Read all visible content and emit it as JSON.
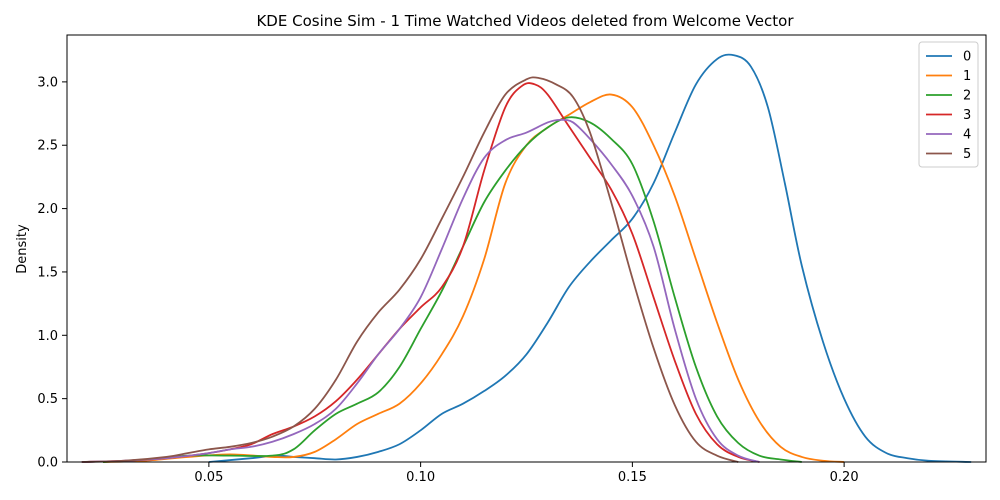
{
  "chart_data": {
    "type": "line",
    "title": "KDE Cosine Sim - 1 Time Watched Videos deleted from Welcome Vector",
    "xlabel": "",
    "ylabel": "Density",
    "xlim": [
      0.0165,
      0.2335
    ],
    "ylim": [
      0,
      3.37
    ],
    "xticks": [
      0.05,
      0.1,
      0.15,
      0.2
    ],
    "xtick_labels": [
      "0.05",
      "0.10",
      "0.15",
      "0.20"
    ],
    "yticks": [
      0.0,
      0.5,
      1.0,
      1.5,
      2.0,
      2.5,
      3.0
    ],
    "ytick_labels": [
      "0.0",
      "0.5",
      "1.0",
      "1.5",
      "2.0",
      "2.5",
      "3.0"
    ],
    "grid": false,
    "legend_position": "top-right",
    "series": [
      {
        "name": "0",
        "color": "#1f77b4",
        "points": [
          [
            0.05,
            0
          ],
          [
            0.06,
            0.03
          ],
          [
            0.066,
            0.05
          ],
          [
            0.07,
            0.04
          ],
          [
            0.075,
            0.03
          ],
          [
            0.08,
            0.02
          ],
          [
            0.085,
            0.04
          ],
          [
            0.09,
            0.08
          ],
          [
            0.095,
            0.14
          ],
          [
            0.1,
            0.25
          ],
          [
            0.105,
            0.38
          ],
          [
            0.11,
            0.46
          ],
          [
            0.115,
            0.56
          ],
          [
            0.12,
            0.68
          ],
          [
            0.125,
            0.85
          ],
          [
            0.13,
            1.1
          ],
          [
            0.135,
            1.38
          ],
          [
            0.14,
            1.58
          ],
          [
            0.145,
            1.75
          ],
          [
            0.15,
            1.92
          ],
          [
            0.155,
            2.2
          ],
          [
            0.16,
            2.6
          ],
          [
            0.165,
            2.98
          ],
          [
            0.17,
            3.18
          ],
          [
            0.174,
            3.21
          ],
          [
            0.178,
            3.12
          ],
          [
            0.182,
            2.8
          ],
          [
            0.186,
            2.2
          ],
          [
            0.19,
            1.55
          ],
          [
            0.195,
            0.95
          ],
          [
            0.2,
            0.5
          ],
          [
            0.205,
            0.2
          ],
          [
            0.21,
            0.07
          ],
          [
            0.215,
            0.03
          ],
          [
            0.22,
            0.01
          ],
          [
            0.23,
            0
          ]
        ]
      },
      {
        "name": "1",
        "color": "#ff7f0e",
        "points": [
          [
            0.025,
            0
          ],
          [
            0.035,
            0.01
          ],
          [
            0.045,
            0.04
          ],
          [
            0.055,
            0.06
          ],
          [
            0.065,
            0.04
          ],
          [
            0.07,
            0.04
          ],
          [
            0.075,
            0.08
          ],
          [
            0.08,
            0.18
          ],
          [
            0.085,
            0.3
          ],
          [
            0.09,
            0.38
          ],
          [
            0.095,
            0.46
          ],
          [
            0.1,
            0.62
          ],
          [
            0.105,
            0.85
          ],
          [
            0.11,
            1.15
          ],
          [
            0.115,
            1.6
          ],
          [
            0.12,
            2.2
          ],
          [
            0.125,
            2.5
          ],
          [
            0.13,
            2.64
          ],
          [
            0.135,
            2.74
          ],
          [
            0.14,
            2.84
          ],
          [
            0.145,
            2.9
          ],
          [
            0.15,
            2.8
          ],
          [
            0.155,
            2.5
          ],
          [
            0.16,
            2.1
          ],
          [
            0.165,
            1.6
          ],
          [
            0.17,
            1.1
          ],
          [
            0.175,
            0.65
          ],
          [
            0.18,
            0.32
          ],
          [
            0.185,
            0.12
          ],
          [
            0.19,
            0.04
          ],
          [
            0.195,
            0.01
          ],
          [
            0.2,
            0
          ]
        ]
      },
      {
        "name": "2",
        "color": "#2ca02c",
        "points": [
          [
            0.025,
            0
          ],
          [
            0.035,
            0.02
          ],
          [
            0.045,
            0.05
          ],
          [
            0.055,
            0.05
          ],
          [
            0.065,
            0.05
          ],
          [
            0.07,
            0.1
          ],
          [
            0.075,
            0.25
          ],
          [
            0.08,
            0.38
          ],
          [
            0.085,
            0.46
          ],
          [
            0.09,
            0.55
          ],
          [
            0.095,
            0.75
          ],
          [
            0.1,
            1.05
          ],
          [
            0.105,
            1.35
          ],
          [
            0.11,
            1.7
          ],
          [
            0.115,
            2.05
          ],
          [
            0.12,
            2.3
          ],
          [
            0.125,
            2.5
          ],
          [
            0.13,
            2.64
          ],
          [
            0.135,
            2.72
          ],
          [
            0.14,
            2.68
          ],
          [
            0.145,
            2.55
          ],
          [
            0.15,
            2.35
          ],
          [
            0.155,
            1.9
          ],
          [
            0.16,
            1.3
          ],
          [
            0.165,
            0.75
          ],
          [
            0.17,
            0.36
          ],
          [
            0.175,
            0.15
          ],
          [
            0.18,
            0.05
          ],
          [
            0.185,
            0.02
          ],
          [
            0.19,
            0
          ]
        ]
      },
      {
        "name": "3",
        "color": "#d62728",
        "points": [
          [
            0.02,
            0
          ],
          [
            0.03,
            0.01
          ],
          [
            0.04,
            0.03
          ],
          [
            0.05,
            0.07
          ],
          [
            0.055,
            0.1
          ],
          [
            0.06,
            0.14
          ],
          [
            0.065,
            0.22
          ],
          [
            0.07,
            0.28
          ],
          [
            0.075,
            0.36
          ],
          [
            0.08,
            0.48
          ],
          [
            0.085,
            0.65
          ],
          [
            0.09,
            0.85
          ],
          [
            0.095,
            1.05
          ],
          [
            0.1,
            1.22
          ],
          [
            0.105,
            1.38
          ],
          [
            0.11,
            1.7
          ],
          [
            0.115,
            2.3
          ],
          [
            0.12,
            2.8
          ],
          [
            0.124,
            2.97
          ],
          [
            0.127,
            2.98
          ],
          [
            0.13,
            2.9
          ],
          [
            0.135,
            2.65
          ],
          [
            0.14,
            2.4
          ],
          [
            0.145,
            2.15
          ],
          [
            0.15,
            1.8
          ],
          [
            0.155,
            1.3
          ],
          [
            0.16,
            0.8
          ],
          [
            0.165,
            0.38
          ],
          [
            0.17,
            0.14
          ],
          [
            0.175,
            0.04
          ],
          [
            0.18,
            0
          ]
        ]
      },
      {
        "name": "4",
        "color": "#9467bd",
        "points": [
          [
            0.02,
            0
          ],
          [
            0.03,
            0.01
          ],
          [
            0.04,
            0.03
          ],
          [
            0.05,
            0.07
          ],
          [
            0.055,
            0.1
          ],
          [
            0.06,
            0.12
          ],
          [
            0.065,
            0.16
          ],
          [
            0.07,
            0.22
          ],
          [
            0.075,
            0.3
          ],
          [
            0.08,
            0.42
          ],
          [
            0.085,
            0.62
          ],
          [
            0.09,
            0.85
          ],
          [
            0.095,
            1.05
          ],
          [
            0.1,
            1.3
          ],
          [
            0.105,
            1.68
          ],
          [
            0.11,
            2.08
          ],
          [
            0.115,
            2.4
          ],
          [
            0.12,
            2.54
          ],
          [
            0.125,
            2.6
          ],
          [
            0.13,
            2.68
          ],
          [
            0.133,
            2.7
          ],
          [
            0.136,
            2.68
          ],
          [
            0.14,
            2.55
          ],
          [
            0.145,
            2.35
          ],
          [
            0.15,
            2.1
          ],
          [
            0.155,
            1.7
          ],
          [
            0.16,
            1.05
          ],
          [
            0.165,
            0.5
          ],
          [
            0.17,
            0.18
          ],
          [
            0.175,
            0.05
          ],
          [
            0.18,
            0
          ]
        ]
      },
      {
        "name": "5",
        "color": "#8c564b",
        "points": [
          [
            0.02,
            0
          ],
          [
            0.03,
            0.01
          ],
          [
            0.04,
            0.04
          ],
          [
            0.045,
            0.07
          ],
          [
            0.05,
            0.1
          ],
          [
            0.055,
            0.12
          ],
          [
            0.06,
            0.15
          ],
          [
            0.065,
            0.2
          ],
          [
            0.07,
            0.28
          ],
          [
            0.075,
            0.42
          ],
          [
            0.08,
            0.65
          ],
          [
            0.085,
            0.95
          ],
          [
            0.09,
            1.18
          ],
          [
            0.095,
            1.36
          ],
          [
            0.1,
            1.6
          ],
          [
            0.105,
            1.92
          ],
          [
            0.11,
            2.25
          ],
          [
            0.115,
            2.6
          ],
          [
            0.12,
            2.9
          ],
          [
            0.125,
            3.02
          ],
          [
            0.128,
            3.03
          ],
          [
            0.132,
            2.98
          ],
          [
            0.136,
            2.88
          ],
          [
            0.14,
            2.6
          ],
          [
            0.145,
            2.05
          ],
          [
            0.15,
            1.45
          ],
          [
            0.155,
            0.9
          ],
          [
            0.16,
            0.45
          ],
          [
            0.165,
            0.16
          ],
          [
            0.17,
            0.05
          ],
          [
            0.175,
            0
          ]
        ]
      }
    ]
  }
}
